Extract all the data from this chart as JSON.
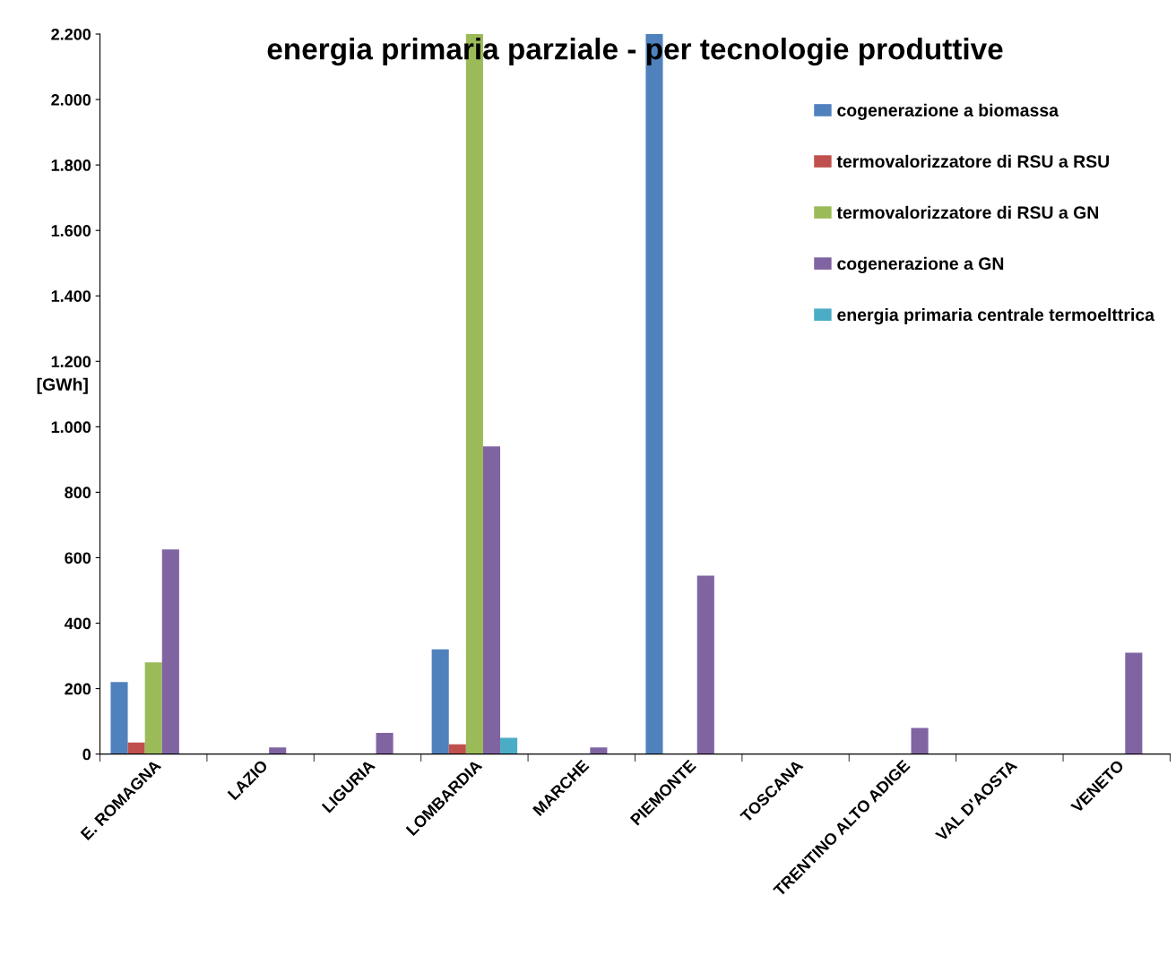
{
  "chart_data": {
    "type": "bar",
    "title": "energia primaria parziale - per tecnologie produttive",
    "ylabel": "[GWh]",
    "categories": [
      "E. ROMAGNA",
      "LAZIO",
      "LIGURIA",
      "LOMBARDIA",
      "MARCHE",
      "PIEMONTE",
      "TOSCANA",
      "TRENTINO ALTO ADIGE",
      "VAL D'AOSTA",
      "VENETO"
    ],
    "series": [
      {
        "name": "cogenerazione a biomassa",
        "color": "#4f81bd",
        "values": [
          220,
          null,
          null,
          320,
          null,
          2200,
          null,
          null,
          null,
          null
        ]
      },
      {
        "name": "termovalorizzatore di RSU a RSU",
        "color": "#c0504d",
        "values": [
          35,
          null,
          null,
          30,
          null,
          null,
          null,
          null,
          null,
          null
        ]
      },
      {
        "name": "termovalorizzatore di RSU a GN",
        "color": "#9bbb59",
        "values": [
          280,
          null,
          null,
          2200,
          null,
          null,
          null,
          null,
          null,
          null
        ]
      },
      {
        "name": "cogenerazione a GN",
        "color": "#8064a2",
        "values": [
          625,
          20,
          65,
          940,
          20,
          545,
          null,
          80,
          null,
          310
        ]
      },
      {
        "name": "energia primaria centrale termoelttrica",
        "color": "#4bacc6",
        "values": [
          null,
          null,
          null,
          50,
          null,
          null,
          null,
          null,
          null,
          null
        ]
      }
    ],
    "ylim": [
      0,
      2200
    ],
    "yticks": [
      0,
      200,
      400,
      600,
      800,
      {
        "value": 1000,
        "label": "1.000"
      },
      {
        "value": 1200,
        "label": "1.200"
      },
      {
        "value": 1400,
        "label": "1.400"
      },
      {
        "value": 1600,
        "label": "1.600"
      },
      {
        "value": 1800,
        "label": "1.800"
      },
      {
        "value": 2000,
        "label": "2.000"
      },
      {
        "value": 2200,
        "label": "2.200"
      }
    ],
    "grid": false,
    "legend": "right"
  }
}
